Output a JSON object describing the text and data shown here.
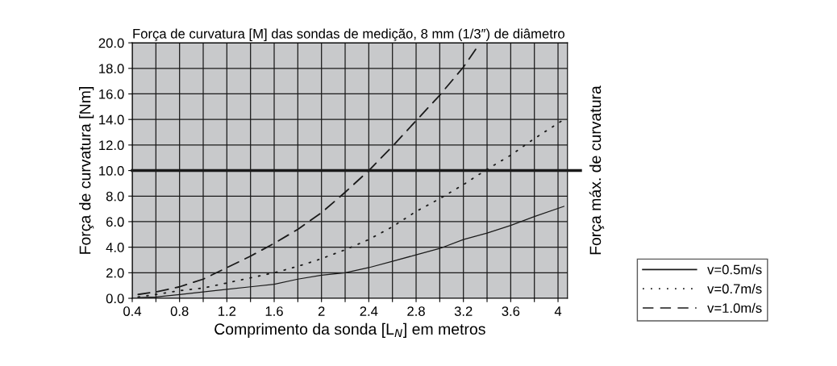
{
  "chart_data": {
    "type": "line",
    "title": "Força de curvatura [M] das sondas de medição, 8 mm (1/3″) de diâmetro",
    "xlabel": "Comprimento da sonda [L$_{N}$] em metros",
    "ylabel": "Força de curvatura [Nm]",
    "series": [
      {
        "name": "v=0.5m/s",
        "color": "#1a1a1a",
        "line_style": "solid",
        "x": [
          0.45,
          0.6,
          0.8,
          1.0,
          1.2,
          1.4,
          1.6,
          1.8,
          2.0,
          2.2,
          2.4,
          2.6,
          2.8,
          3.0,
          3.2,
          3.4,
          3.6,
          3.8,
          4.05
        ],
        "values": [
          0.05,
          0.1,
          0.3,
          0.5,
          0.7,
          0.9,
          1.1,
          1.5,
          1.8,
          2.0,
          2.4,
          2.9,
          3.4,
          3.9,
          4.6,
          5.1,
          5.7,
          6.4,
          7.2
        ]
      },
      {
        "name": "v=0.7m/s",
        "color": "#1a1a1a",
        "line_style": "dotted",
        "x": [
          0.45,
          0.6,
          0.8,
          1.0,
          1.2,
          1.4,
          1.6,
          1.8,
          2.0,
          2.2,
          2.4,
          2.6,
          2.8,
          3.0,
          3.2,
          3.4,
          3.6,
          3.8,
          4.05
        ],
        "values": [
          0.1,
          0.3,
          0.6,
          0.8,
          1.2,
          1.6,
          2.0,
          2.5,
          3.1,
          3.8,
          4.6,
          5.6,
          6.8,
          7.8,
          8.9,
          10.1,
          11.2,
          12.5,
          14.0
        ]
      },
      {
        "name": "v=1.0m/s",
        "color": "#1a1a1a",
        "line_style": "dashed",
        "x": [
          0.45,
          0.6,
          0.8,
          1.0,
          1.2,
          1.4,
          1.6,
          1.8,
          2.0,
          2.2,
          2.4,
          2.6,
          2.8,
          3.0,
          3.2,
          3.32
        ],
        "values": [
          0.3,
          0.5,
          0.9,
          1.5,
          2.4,
          3.3,
          4.3,
          5.4,
          6.7,
          8.3,
          10.0,
          11.9,
          13.9,
          15.9,
          18.1,
          19.7
        ]
      }
    ],
    "xlim": [
      0.4,
      4.08
    ],
    "xticks": [
      0.4,
      {
        "value": 0.6,
        "label": null
      },
      0.8,
      {
        "value": 1.0,
        "label": null
      },
      1.2,
      {
        "value": 1.4,
        "label": null
      },
      1.6,
      {
        "value": 1.8,
        "label": null
      },
      2,
      {
        "value": 2.2,
        "label": null
      },
      2.4,
      {
        "value": 2.6,
        "label": null
      },
      2.8,
      {
        "value": 3.0,
        "label": null
      },
      3.2,
      {
        "value": 3.4,
        "label": null
      },
      3.6,
      {
        "value": 3.8,
        "label": null
      },
      4
    ],
    "ylim": [
      0,
      20
    ],
    "yticks": [
      {
        "value": 0,
        "label": "0.0"
      },
      {
        "value": 2,
        "label": "2.0"
      },
      {
        "value": 4,
        "label": "4.0"
      },
      {
        "value": 6,
        "label": "6.0"
      },
      {
        "value": 8,
        "label": "8.0"
      },
      {
        "value": 10,
        "label": "10.0"
      },
      {
        "value": 12,
        "label": "12.0"
      },
      {
        "value": 14,
        "label": "14.0"
      },
      {
        "value": 16,
        "label": "16.0"
      },
      {
        "value": 18,
        "label": "18.0"
      },
      {
        "value": 20,
        "label": "20.0"
      }
    ],
    "ref_lines": [
      {
        "axis": "y",
        "value": 10,
        "label": "Força máx. de curvatura",
        "color": "#1a1a1a"
      }
    ],
    "grid": true,
    "legend": "bottom right",
    "marker": "none"
  }
}
